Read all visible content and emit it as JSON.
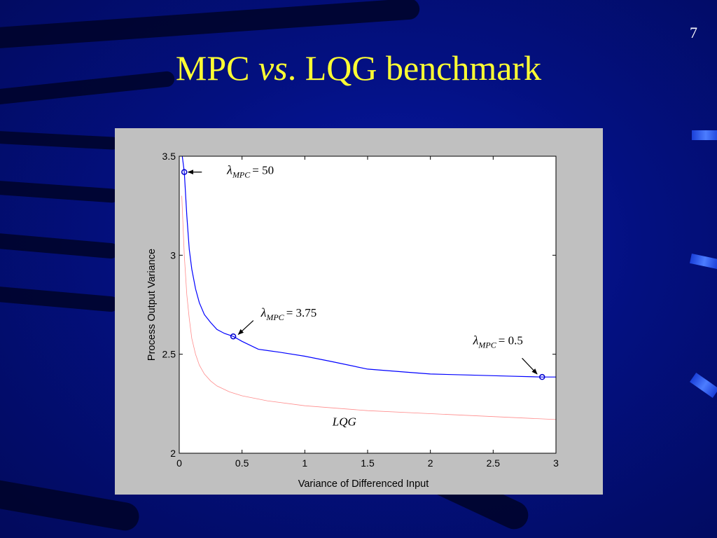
{
  "slide": {
    "page_number": "7",
    "title_part1": "MPC ",
    "title_italic": "vs",
    "title_part2": ". LQG benchmark"
  },
  "colors": {
    "background": "#031080",
    "title": "#ffff33",
    "panel": "#c0c0c0",
    "mpc_curve": "#0000ff",
    "lqg_curve": "#ff8c8c"
  },
  "chart_data": {
    "type": "line",
    "xlabel": "Variance of Differenced Input",
    "ylabel": "Process Output Variance",
    "xlim": [
      0,
      3
    ],
    "ylim": [
      2,
      3.5
    ],
    "x_ticks": [
      "0",
      "0.5",
      "1",
      "1.5",
      "2",
      "2.5",
      "3"
    ],
    "y_ticks": [
      "2",
      "2.5",
      "3",
      "3.5"
    ],
    "grid": false,
    "series": [
      {
        "color": "#0000ff",
        "x": [
          0.02,
          0.04,
          0.06,
          0.08,
          0.1,
          0.13,
          0.16,
          0.2,
          0.25,
          0.3,
          0.36,
          0.43,
          0.5,
          0.63,
          0.8,
          1.0,
          1.2,
          1.5,
          1.8,
          2.0,
          2.3,
          2.6,
          2.89,
          3.0
        ],
        "y": [
          3.52,
          3.42,
          3.2,
          3.03,
          2.93,
          2.83,
          2.76,
          2.7,
          2.66,
          2.625,
          2.605,
          2.59,
          2.565,
          2.525,
          2.51,
          2.49,
          2.465,
          2.425,
          2.41,
          2.4,
          2.395,
          2.39,
          2.385,
          2.385
        ]
      },
      {
        "color": "#ff8c8c",
        "x": [
          0.02,
          0.04,
          0.06,
          0.08,
          0.1,
          0.13,
          0.16,
          0.2,
          0.25,
          0.3,
          0.4,
          0.5,
          0.7,
          1.0,
          1.5,
          2.0,
          2.5,
          3.0
        ],
        "y": [
          3.3,
          3.0,
          2.8,
          2.68,
          2.58,
          2.5,
          2.445,
          2.4,
          2.365,
          2.34,
          2.31,
          2.29,
          2.265,
          2.24,
          2.215,
          2.2,
          2.185,
          2.17
        ]
      }
    ],
    "markers": [
      {
        "x": 0.04,
        "y": 3.42
      },
      {
        "x": 0.43,
        "y": 2.59
      },
      {
        "x": 2.89,
        "y": 2.385
      }
    ],
    "annotations": [
      {
        "lambda": "λ",
        "sub": "MPC",
        "text": "= 50",
        "x": 0.38,
        "y": 3.41,
        "arrow_from": [
          0.18,
          3.42
        ],
        "arrow_to": [
          0.07,
          3.42
        ]
      },
      {
        "lambda": "λ",
        "sub": "MPC",
        "text": "= 3.75",
        "x": 0.65,
        "y": 2.69,
        "arrow_from": [
          0.59,
          2.67
        ],
        "arrow_to": [
          0.47,
          2.6
        ]
      },
      {
        "lambda": "λ",
        "sub": "MPC",
        "text": "= 0.5",
        "x": 2.34,
        "y": 2.55,
        "arrow_from": [
          2.73,
          2.48
        ],
        "arrow_to": [
          2.85,
          2.4
        ]
      },
      {
        "lambda": "",
        "sub": "",
        "text": "LQG",
        "x": 1.22,
        "y": 2.14,
        "italic": true
      }
    ]
  }
}
